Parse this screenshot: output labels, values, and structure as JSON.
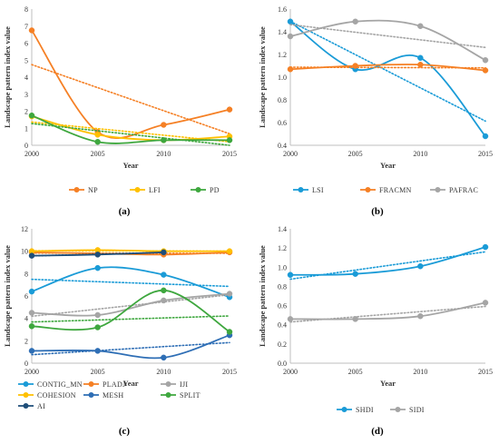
{
  "chart_data": [
    {
      "type": "line",
      "panel_label": "(a)",
      "xlabel": "Year",
      "ylabel": "Landscape pattern index value",
      "x": [
        2000,
        2005,
        2010,
        2015
      ],
      "xlim": [
        2000,
        2015
      ],
      "ylim": [
        0,
        8
      ],
      "yticks": [
        0,
        1,
        2,
        3,
        4,
        5,
        6,
        7,
        8
      ],
      "ytick_decimals": 0,
      "grid": false,
      "trendlines": true,
      "legend_columns": 3,
      "legend_position": "bottom",
      "series": [
        {
          "name": "NP",
          "color": "#F58025",
          "values": [
            6.75,
            0.78,
            1.2,
            2.1
          ]
        },
        {
          "name": "LFI",
          "color": "#FFC000",
          "values": [
            1.7,
            0.62,
            0.3,
            0.52
          ]
        },
        {
          "name": "PD",
          "color": "#3EA73E",
          "values": [
            1.75,
            0.2,
            0.3,
            0.3
          ]
        }
      ]
    },
    {
      "type": "line",
      "panel_label": "(b)",
      "xlabel": "Year",
      "ylabel": "Landscape pattern index value",
      "x": [
        2000,
        2005,
        2010,
        2015
      ],
      "xlim": [
        2000,
        2015
      ],
      "ylim": [
        0.4,
        1.6
      ],
      "yticks": [
        0.4,
        0.6,
        0.8,
        1.0,
        1.2,
        1.4,
        1.6
      ],
      "ytick_decimals": 1,
      "grid": false,
      "trendlines": true,
      "legend_columns": 3,
      "legend_position": "bottom",
      "series": [
        {
          "name": "LSI",
          "color": "#1A9BD7",
          "values": [
            1.49,
            1.07,
            1.17,
            0.48
          ]
        },
        {
          "name": "FRACMN",
          "color": "#F58025",
          "values": [
            1.07,
            1.1,
            1.11,
            1.06
          ]
        },
        {
          "name": "PAFRAC",
          "color": "#A5A5A5",
          "values": [
            1.36,
            1.49,
            1.45,
            1.15
          ]
        }
      ]
    },
    {
      "type": "line",
      "panel_label": "(c)",
      "xlabel": "Year",
      "ylabel": "Landscape pattern index value",
      "x": [
        2000,
        2005,
        2010,
        2015
      ],
      "xlim": [
        2000,
        2015
      ],
      "ylim": [
        0,
        12
      ],
      "yticks": [
        0,
        2,
        4,
        6,
        8,
        10,
        12
      ],
      "ytick_decimals": 0,
      "grid": false,
      "trendlines": true,
      "legend_columns": 3,
      "legend_position": "bottom",
      "series": [
        {
          "name": "CONTIG_MN",
          "color": "#1A9BD7",
          "values": [
            6.4,
            8.5,
            7.9,
            5.9
          ]
        },
        {
          "name": "PLADJ",
          "color": "#F58025",
          "values": [
            9.9,
            9.8,
            9.7,
            9.9
          ]
        },
        {
          "name": "IJI",
          "color": "#A5A5A5",
          "values": [
            4.5,
            4.3,
            5.6,
            6.2
          ]
        },
        {
          "name": "COHESION",
          "color": "#FFC000",
          "values": [
            10.0,
            10.1,
            10.0,
            10.0
          ]
        },
        {
          "name": "MESH",
          "color": "#2E6EB5",
          "values": [
            1.1,
            1.1,
            0.5,
            2.5
          ]
        },
        {
          "name": "SPLIT",
          "color": "#3EA73E",
          "values": [
            3.3,
            3.2,
            6.5,
            2.8
          ]
        },
        {
          "name": "AI",
          "color": "#1F4E79",
          "values": [
            9.6,
            9.7,
            9.9,
            null
          ]
        }
      ]
    },
    {
      "type": "line",
      "panel_label": "(d)",
      "xlabel": "Year",
      "ylabel": "Landscape pattern index value",
      "x": [
        2000,
        2005,
        2010,
        2015
      ],
      "xlim": [
        2000,
        2015
      ],
      "ylim": [
        0,
        1.4
      ],
      "yticks": [
        0,
        0.2,
        0.4,
        0.6,
        0.8,
        1.0,
        1.2,
        1.4
      ],
      "ytick_decimals": 1,
      "grid": false,
      "trendlines": true,
      "legend_columns": 3,
      "legend_position": "bottom",
      "series": [
        {
          "name": "SHDI",
          "color": "#1A9BD7",
          "values": [
            0.92,
            0.93,
            1.01,
            1.21
          ]
        },
        {
          "name": "SIDI",
          "color": "#A5A5A5",
          "values": [
            0.46,
            0.46,
            0.49,
            0.63
          ]
        }
      ]
    }
  ]
}
